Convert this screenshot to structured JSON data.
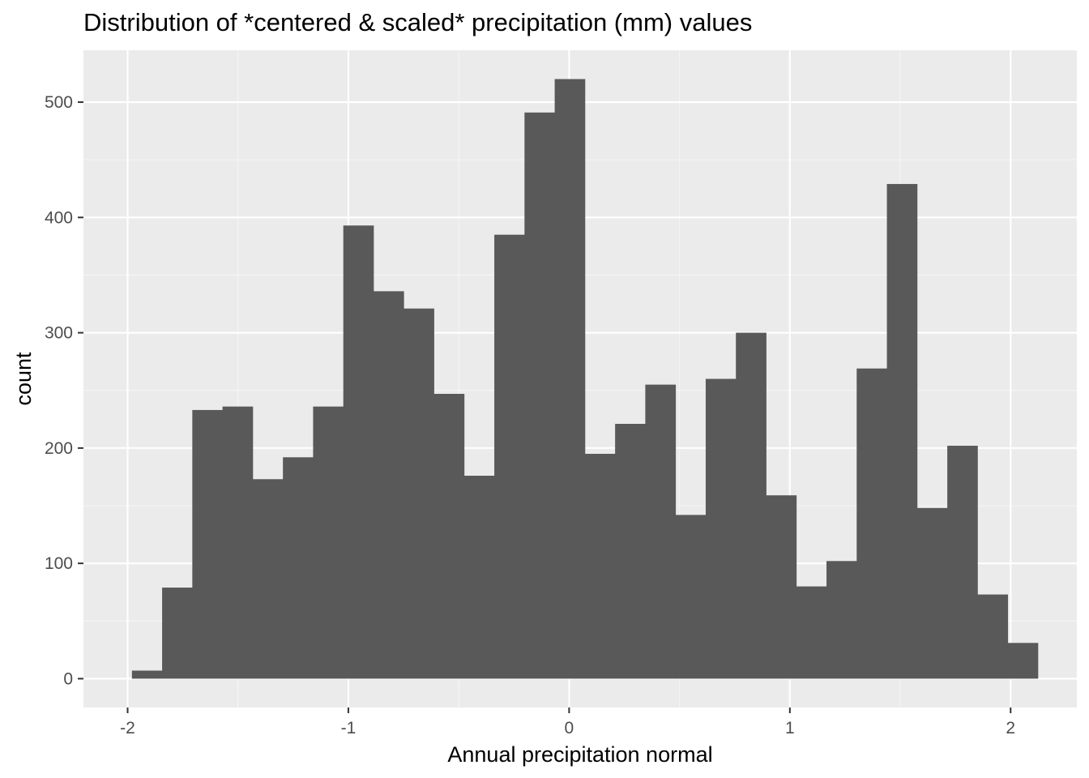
{
  "chart_data": {
    "type": "histogram",
    "title": "Distribution of *centered & scaled* precipitation (mm) values",
    "xlabel": "Annual precipitation normal",
    "ylabel": "count",
    "xlim": [
      -2.2,
      2.3
    ],
    "ylim": [
      -25,
      545
    ],
    "x_ticks": [
      -2,
      -1,
      0,
      1,
      2
    ],
    "x_tick_labels": [
      "-2",
      "-1",
      "0",
      "1",
      "2"
    ],
    "y_ticks": [
      0,
      100,
      200,
      300,
      400,
      500
    ],
    "y_tick_labels": [
      "0",
      "100",
      "200",
      "300",
      "400",
      "500"
    ],
    "bin_width": 0.1368,
    "bins_start": -1.9805,
    "values": [
      7,
      79,
      233,
      236,
      173,
      192,
      236,
      393,
      336,
      321,
      247,
      176,
      385,
      491,
      520,
      195,
      221,
      255,
      142,
      260,
      300,
      159,
      80,
      102,
      269,
      429,
      148,
      202,
      73,
      31
    ],
    "grid": true,
    "legend": "none",
    "colors": {
      "bar": "#595959",
      "panel_background": "#ebebeb",
      "grid_major": "#ffffff",
      "grid_minor": "#f5f5f5"
    }
  }
}
